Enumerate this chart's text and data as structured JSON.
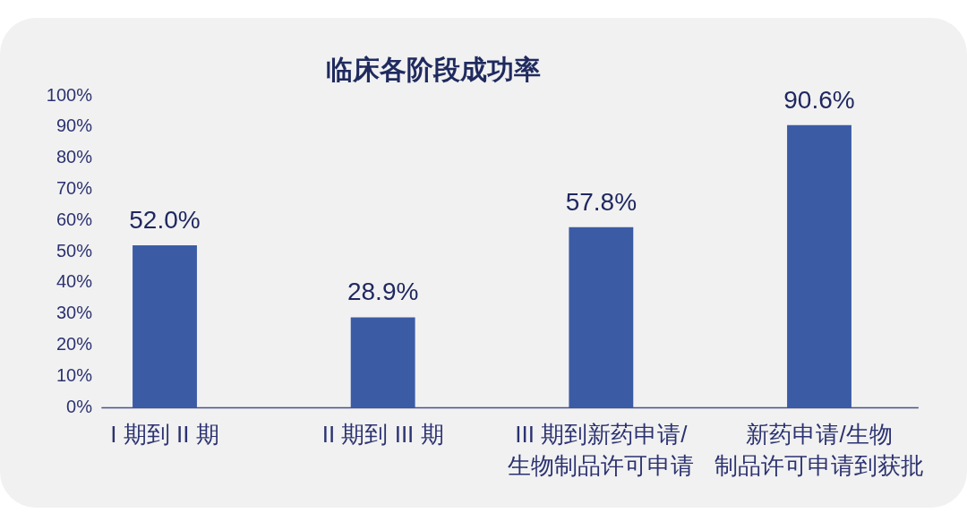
{
  "chart_data": {
    "type": "bar",
    "title": "临床各阶段成功率",
    "categories": [
      "I 期到 II 期",
      "II 期到 III 期",
      "III 期到新药申请/生物制品许可申请",
      "新药申请/生物制品许可申请到获批"
    ],
    "values": [
      52.0,
      28.9,
      57.8,
      90.6
    ],
    "value_labels": [
      "52.0%",
      "28.9%",
      "57.8%",
      "90.6%"
    ],
    "color": "#3c5ba5",
    "ylim": [
      0,
      100
    ],
    "yticks": [
      {
        "value": 0,
        "label": "0%"
      },
      {
        "value": 10,
        "label": "10%"
      },
      {
        "value": 20,
        "label": "20%"
      },
      {
        "value": 30,
        "label": "30%"
      },
      {
        "value": 40,
        "label": "40%"
      },
      {
        "value": 50,
        "label": "50%"
      },
      {
        "value": 60,
        "label": "60%"
      },
      {
        "value": 70,
        "label": "70%"
      },
      {
        "value": 80,
        "label": "80%"
      },
      {
        "value": 90,
        "label": "90%"
      },
      {
        "value": 100,
        "label": "100%"
      }
    ]
  }
}
